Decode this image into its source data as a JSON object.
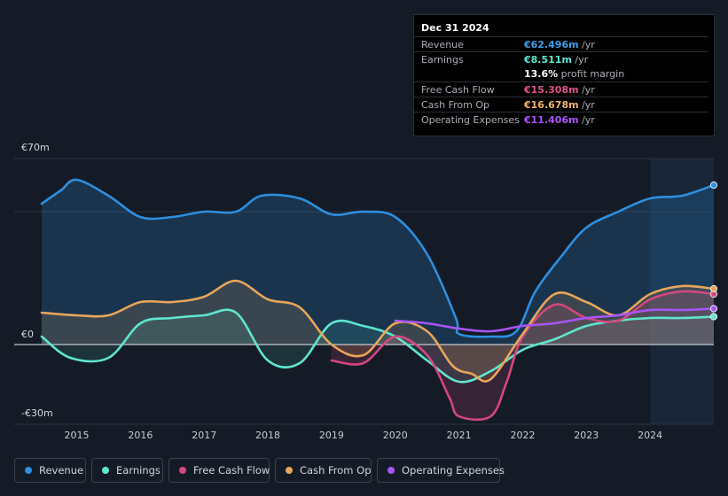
{
  "tooltip": {
    "date": "Dec 31 2024",
    "rows": [
      {
        "label": "Revenue",
        "value": "€62.496m",
        "unit": " /yr",
        "color": "#3ea0e8"
      },
      {
        "label": "Earnings",
        "value": "€8.511m",
        "unit": " /yr",
        "color": "#5ee6cf"
      },
      {
        "label": "",
        "value": "13.6%",
        "unit": " profit margin",
        "color": "#ffffff"
      },
      {
        "label": "Free Cash Flow",
        "value": "€15.308m",
        "unit": " /yr",
        "color": "#e0558c"
      },
      {
        "label": "Cash From Op",
        "value": "€16.678m",
        "unit": " /yr",
        "color": "#f0b56c"
      },
      {
        "label": "Operating Expenses",
        "value": "€11.406m",
        "unit": " /yr",
        "color": "#a855f7"
      }
    ]
  },
  "legend": [
    {
      "label": "Revenue",
      "color": "#2d8fe0"
    },
    {
      "label": "Earnings",
      "color": "#5ee6cf"
    },
    {
      "label": "Free Cash Flow",
      "color": "#d4477e"
    },
    {
      "label": "Cash From Op",
      "color": "#e8a65a"
    },
    {
      "label": "Operating Expenses",
      "color": "#a855f7"
    }
  ],
  "chart_data": {
    "type": "area",
    "title": "",
    "currency": "€",
    "unit": "m",
    "ylim": [
      -30,
      70
    ],
    "y_tick_labels": [
      "€70m",
      "€0",
      "-€30m"
    ],
    "y_tick_values": [
      70,
      0,
      -30
    ],
    "xlim": [
      2014.45,
      2025.0
    ],
    "x_tick_labels": [
      "2015",
      "2016",
      "2017",
      "2018",
      "2019",
      "2020",
      "2021",
      "2022",
      "2023",
      "2024"
    ],
    "x_tick_values": [
      2015,
      2016,
      2017,
      2018,
      2019,
      2020,
      2021,
      2022,
      2023,
      2024
    ],
    "forecast_start": 2024.0,
    "series": [
      {
        "name": "Revenue",
        "color": "#2d8fe0",
        "points": [
          [
            2014.45,
            53
          ],
          [
            2014.75,
            58
          ],
          [
            2015.0,
            62
          ],
          [
            2015.5,
            56
          ],
          [
            2016.0,
            48
          ],
          [
            2016.5,
            48
          ],
          [
            2017.0,
            50
          ],
          [
            2017.5,
            50
          ],
          [
            2017.9,
            56
          ],
          [
            2018.5,
            55
          ],
          [
            2019.0,
            49
          ],
          [
            2019.5,
            50
          ],
          [
            2020.0,
            48
          ],
          [
            2020.5,
            34
          ],
          [
            2020.95,
            10
          ],
          [
            2021.0,
            4
          ],
          [
            2021.5,
            3
          ],
          [
            2021.9,
            5
          ],
          [
            2022.2,
            20
          ],
          [
            2022.6,
            33
          ],
          [
            2023.0,
            44
          ],
          [
            2023.5,
            50
          ],
          [
            2024.0,
            55
          ],
          [
            2024.5,
            56
          ],
          [
            2025.0,
            60
          ]
        ]
      },
      {
        "name": "Earnings",
        "color": "#5ee6cf",
        "points": [
          [
            2014.45,
            3
          ],
          [
            2014.9,
            -5
          ],
          [
            2015.5,
            -5
          ],
          [
            2016.0,
            8
          ],
          [
            2016.5,
            10
          ],
          [
            2017.0,
            11
          ],
          [
            2017.5,
            12
          ],
          [
            2018.0,
            -6
          ],
          [
            2018.5,
            -7
          ],
          [
            2019.0,
            8
          ],
          [
            2019.5,
            7
          ],
          [
            2020.0,
            3
          ],
          [
            2020.5,
            -6
          ],
          [
            2021.0,
            -14
          ],
          [
            2021.5,
            -10
          ],
          [
            2022.0,
            -2
          ],
          [
            2022.5,
            2
          ],
          [
            2023.0,
            7
          ],
          [
            2023.5,
            9
          ],
          [
            2024.0,
            10
          ],
          [
            2024.5,
            10
          ],
          [
            2025.0,
            10.5
          ]
        ]
      },
      {
        "name": "Free Cash Flow",
        "color": "#d4477e",
        "points": [
          [
            2019.0,
            -6
          ],
          [
            2019.5,
            -7
          ],
          [
            2020.0,
            3
          ],
          [
            2020.5,
            -4
          ],
          [
            2020.85,
            -20
          ],
          [
            2021.0,
            -27
          ],
          [
            2021.5,
            -27
          ],
          [
            2021.75,
            -14
          ],
          [
            2022.0,
            3
          ],
          [
            2022.5,
            15
          ],
          [
            2023.0,
            10
          ],
          [
            2023.5,
            9
          ],
          [
            2024.0,
            17
          ],
          [
            2024.5,
            20
          ],
          [
            2025.0,
            19
          ]
        ]
      },
      {
        "name": "Cash From Op",
        "color": "#e8a65a",
        "points": [
          [
            2014.45,
            12
          ],
          [
            2015.0,
            11
          ],
          [
            2015.5,
            11
          ],
          [
            2016.0,
            16
          ],
          [
            2016.5,
            16
          ],
          [
            2017.0,
            18
          ],
          [
            2017.5,
            24
          ],
          [
            2018.0,
            17
          ],
          [
            2018.5,
            14
          ],
          [
            2019.0,
            0
          ],
          [
            2019.5,
            -4
          ],
          [
            2020.0,
            8
          ],
          [
            2020.5,
            5
          ],
          [
            2020.9,
            -8
          ],
          [
            2021.2,
            -11
          ],
          [
            2021.5,
            -13
          ],
          [
            2022.0,
            4
          ],
          [
            2022.5,
            19
          ],
          [
            2023.0,
            16
          ],
          [
            2023.5,
            11
          ],
          [
            2024.0,
            19
          ],
          [
            2024.5,
            22
          ],
          [
            2025.0,
            21
          ]
        ]
      },
      {
        "name": "Operating Expenses",
        "color": "#a855f7",
        "points": [
          [
            2020.0,
            9
          ],
          [
            2020.5,
            8
          ],
          [
            2021.0,
            6
          ],
          [
            2021.5,
            5
          ],
          [
            2022.0,
            7
          ],
          [
            2022.5,
            8
          ],
          [
            2023.0,
            10
          ],
          [
            2023.5,
            11
          ],
          [
            2024.0,
            13
          ],
          [
            2024.5,
            13
          ],
          [
            2025.0,
            13.5
          ]
        ]
      }
    ]
  }
}
